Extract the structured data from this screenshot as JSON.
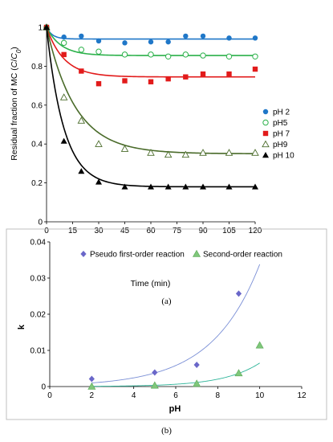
{
  "chart_data": [
    {
      "type": "scatter",
      "panel": "(a)",
      "xlabel": "Time (min)",
      "ylabel_prefix": "Residual fraction of MC (",
      "ylabel_c": "C",
      "ylabel_slash": "/",
      "ylabel_c0": "C",
      "ylabel_sub0": "0",
      "ylabel_suffix": ")",
      "xlim": [
        0,
        120
      ],
      "ylim": [
        0,
        1
      ],
      "xticks": [
        0,
        15,
        30,
        45,
        60,
        75,
        90,
        105,
        120
      ],
      "xtick_labels": [
        "0",
        "15",
        "30",
        "45",
        "60",
        "75",
        "90",
        "105",
        "120"
      ],
      "yticks": [
        0,
        0.2,
        0.4,
        0.6,
        0.8,
        1
      ],
      "ytick_labels": [
        "0",
        "0.2",
        "0.4",
        "0.6",
        "0.8",
        "1"
      ],
      "grid": false,
      "legend_position": "right",
      "series": [
        {
          "name": "pH 2",
          "color": "#1f77c8",
          "marker": "circle-filled",
          "x": [
            0,
            10,
            20,
            30,
            45,
            60,
            70,
            80,
            90,
            105,
            120
          ],
          "y": [
            1.0,
            0.95,
            0.955,
            0.93,
            0.92,
            0.925,
            0.925,
            0.955,
            0.955,
            0.945,
            0.945
          ],
          "fit": {
            "kind": "exp",
            "c_inf": 0.94,
            "k": 0.3
          }
        },
        {
          "name": "pH5",
          "color": "#2bb14a",
          "marker": "circle-open",
          "x": [
            0,
            10,
            20,
            30,
            45,
            60,
            70,
            80,
            90,
            105,
            120
          ],
          "y": [
            1.0,
            0.92,
            0.885,
            0.875,
            0.86,
            0.86,
            0.85,
            0.86,
            0.855,
            0.85,
            0.85
          ],
          "fit": {
            "kind": "exp",
            "c_inf": 0.855,
            "k": 0.12
          }
        },
        {
          "name": "pH 7",
          "color": "#e21b1b",
          "marker": "square-filled",
          "x": [
            0,
            10,
            20,
            30,
            45,
            60,
            70,
            80,
            90,
            105,
            120
          ],
          "y": [
            1.0,
            0.86,
            0.775,
            0.71,
            0.725,
            0.72,
            0.735,
            0.745,
            0.76,
            0.76,
            0.785
          ],
          "fit": {
            "kind": "exp",
            "c_inf": 0.745,
            "k": 0.1
          }
        },
        {
          "name": "pH9",
          "color": "#4a6b2a",
          "marker": "triangle-open",
          "x": [
            0,
            10,
            20,
            30,
            45,
            60,
            70,
            80,
            90,
            105,
            120
          ],
          "y": [
            1.0,
            0.64,
            0.52,
            0.4,
            0.375,
            0.355,
            0.345,
            0.345,
            0.355,
            0.355,
            0.355
          ],
          "fit": {
            "kind": "exp",
            "c_inf": 0.35,
            "k": 0.06
          }
        },
        {
          "name": "pH 10",
          "color": "#000000",
          "marker": "triangle-filled",
          "x": [
            0,
            10,
            20,
            30,
            45,
            60,
            70,
            80,
            90,
            105,
            120
          ],
          "y": [
            1.0,
            0.415,
            0.26,
            0.205,
            0.18,
            0.18,
            0.18,
            0.18,
            0.18,
            0.18,
            0.18
          ],
          "fit": {
            "kind": "exp",
            "c_inf": 0.18,
            "k": 0.1
          }
        }
      ]
    },
    {
      "type": "scatter",
      "panel": "(b)",
      "xlabel": "pH",
      "ylabel": "k",
      "xlim": [
        0,
        12
      ],
      "ylim": [
        0,
        0.04
      ],
      "xticks": [
        0,
        2,
        4,
        6,
        8,
        10,
        12
      ],
      "xtick_labels": [
        "0",
        "2",
        "4",
        "6",
        "8",
        "10",
        "12"
      ],
      "yticks": [
        0,
        0.01,
        0.02,
        0.03,
        0.04
      ],
      "ytick_labels": [
        "0",
        "0.01",
        "0.02",
        "0.03",
        "0.04"
      ],
      "grid": false,
      "legend_position": "top",
      "series": [
        {
          "name": "Pseudo first-order reaction",
          "color": "#6a67c9",
          "marker": "diamond",
          "line_color": "#7a8fd6",
          "x": [
            2,
            5,
            7,
            9
          ],
          "y": [
            0.0021,
            0.0039,
            0.006,
            0.0257
          ],
          "fit": {
            "kind": "exp",
            "a": 0.000415,
            "b": 0.44
          }
        },
        {
          "name": "Second-order reaction",
          "color": "#7fc77a",
          "marker": "triangle",
          "line_color": "#2fb59a",
          "x": [
            2,
            5,
            7,
            9,
            10
          ],
          "y": [
            0.0,
            0.0003,
            0.0008,
            0.0037,
            0.0114
          ],
          "fit": {
            "kind": "exp",
            "a": 1.97e-05,
            "b": 0.58
          }
        }
      ]
    }
  ]
}
